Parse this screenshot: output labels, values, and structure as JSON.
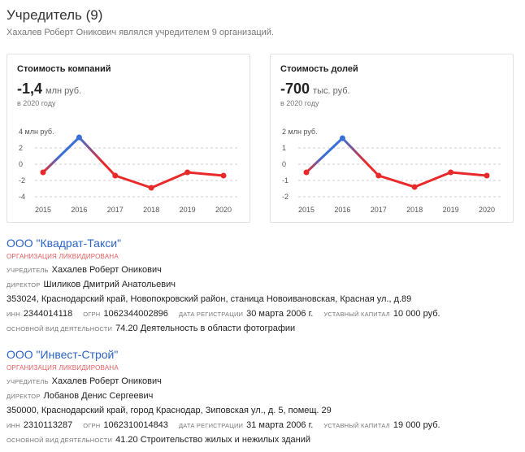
{
  "header": {
    "title": "Учредитель (9)",
    "subtitle": "Хахалев Роберт Оникович являлся учредителем 9 организаций."
  },
  "cards": [
    {
      "title": "Стоимость компаний",
      "value": "-1,4",
      "unit": "млн руб.",
      "year": "в 2020 году"
    },
    {
      "title": "Стоимость долей",
      "value": "-700",
      "unit": "тыс. руб.",
      "year": "в 2020 году"
    }
  ],
  "chart_data": [
    {
      "type": "line",
      "x": [
        "2015",
        "2016",
        "2017",
        "2018",
        "2019",
        "2020"
      ],
      "values": [
        -1.0,
        3.3,
        -1.4,
        -2.9,
        -1.0,
        -1.4
      ],
      "yticks": [
        "4 млн руб.",
        "2",
        "0",
        "-2",
        "-4"
      ],
      "ylim": [
        -4,
        4
      ],
      "colors": {
        "rising": "#3a6fd8",
        "falling": "#e82a2a"
      }
    },
    {
      "type": "line",
      "x": [
        "2015",
        "2016",
        "2017",
        "2018",
        "2019",
        "2020"
      ],
      "values": [
        -0.5,
        1.6,
        -0.7,
        -1.4,
        -0.5,
        -0.7
      ],
      "yticks": [
        "2 млн руб.",
        "1",
        "0",
        "-1",
        "-2"
      ],
      "ylim": [
        -2,
        2
      ],
      "colors": {
        "rising": "#3a6fd8",
        "falling": "#e82a2a"
      }
    }
  ],
  "labels": {
    "founder": "Учредитель",
    "director": "Директор",
    "inn": "ИНН",
    "ogrn": "ОГРН",
    "reg_date": "Дата регистрации",
    "capital": "Уставный капитал",
    "activity": "Основной вид деятельности"
  },
  "orgs": [
    {
      "name": "ООО \"Квадрат-Такси\"",
      "status": "Организация ликвидирована",
      "founder": "Хахалев Роберт Оникович",
      "director": "Шиликов Дмитрий Анатольевич",
      "address": "353024, Краснодарский край, Новопокровский район, станица Новоивановская, Красная ул., д.89",
      "inn": "2344014118",
      "ogrn": "1062344002896",
      "reg_date": "30 марта 2006 г.",
      "capital": "10 000 руб.",
      "activity": "74.20 Деятельность в области фотографии"
    },
    {
      "name": "ООО \"Инвест-Строй\"",
      "status": "Организация ликвидирована",
      "founder": "Хахалев Роберт Оникович",
      "director": "Лобанов Денис Сергеевич",
      "address": "350000, Краснодарский край, город Краснодар, Зиповская ул., д. 5, помещ. 29",
      "inn": "2310113287",
      "ogrn": "1062310014843",
      "reg_date": "31 марта 2006 г.",
      "capital": "19 000 руб.",
      "activity": "41.20 Строительство жилых и нежилых зданий"
    }
  ]
}
